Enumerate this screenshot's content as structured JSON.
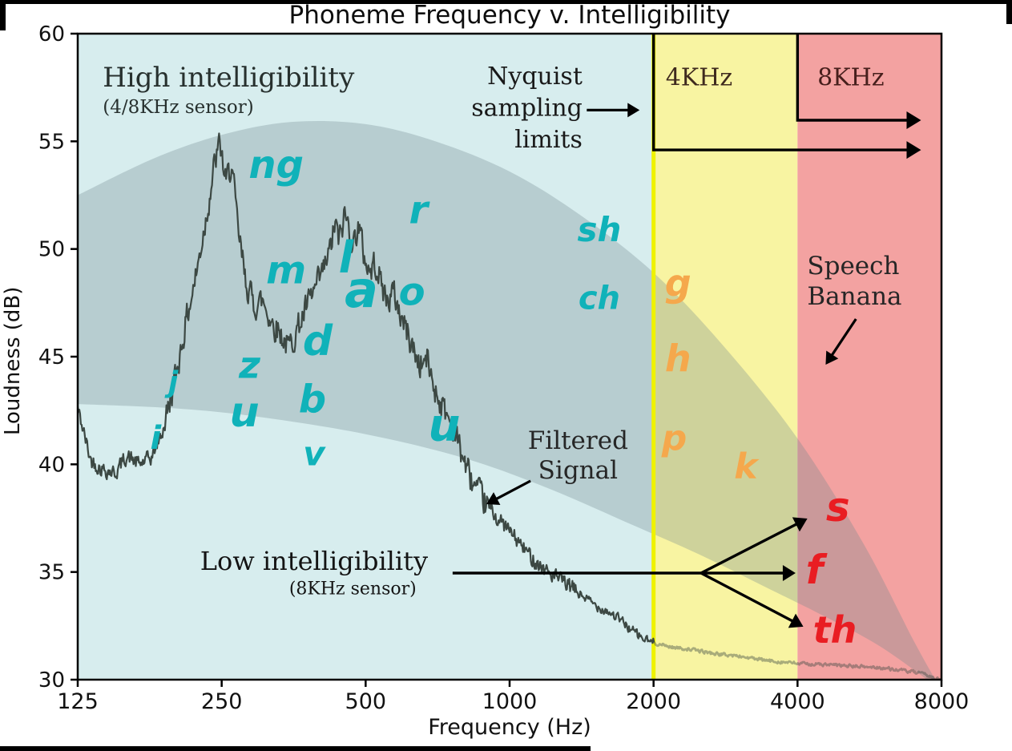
{
  "chart_data": {
    "type": "line",
    "title": "Phoneme Frequency v. Intelligibility",
    "xlabel": "Frequency (Hz)",
    "ylabel": "Loudness (dB)",
    "x_scale": "log2",
    "xlim": [
      125,
      8000
    ],
    "ylim": [
      30,
      60
    ],
    "x_ticks": [
      125,
      250,
      500,
      1000,
      2000,
      4000,
      8000
    ],
    "y_ticks": [
      30,
      35,
      40,
      45,
      50,
      55,
      60
    ],
    "grid": false,
    "colors": {
      "axis": "#000000",
      "annotation": "#1c1c1c",
      "banana": "rgba(108,134,140,0.30)",
      "signal": "#3c4843",
      "band_edge": "#eff200"
    },
    "bands": [
      {
        "label": "high-intelligibility-band",
        "x0": 125,
        "x1": 2000,
        "color": "#d7edee"
      },
      {
        "label": "4khz-band",
        "x0": 2000,
        "x1": 4000,
        "color": "#f8f4a2"
      },
      {
        "label": "8khz-band",
        "x0": 4000,
        "x1": 8000,
        "color": "#f3a2a1"
      }
    ],
    "band_edge": {
      "hz": 2000,
      "color": "#eff200",
      "width": 5
    },
    "speech_banana": {
      "fill": "rgba(108,134,140,0.30)",
      "top": [
        [
          125,
          52.5
        ],
        [
          180,
          54.2
        ],
        [
          250,
          55.3
        ],
        [
          350,
          55.9
        ],
        [
          500,
          55.8
        ],
        [
          700,
          55.0
        ],
        [
          1000,
          53.6
        ],
        [
          1400,
          51.6
        ],
        [
          2000,
          48.9
        ],
        [
          2800,
          45.5
        ],
        [
          4000,
          41.2
        ],
        [
          5500,
          36.3
        ],
        [
          7000,
          31.8
        ],
        [
          8000,
          29.5
        ]
      ],
      "bottom": [
        [
          8000,
          29.5
        ],
        [
          6000,
          31.5
        ],
        [
          4500,
          33.0
        ],
        [
          3500,
          34.2
        ],
        [
          2500,
          35.8
        ],
        [
          1800,
          37.2
        ],
        [
          1200,
          38.9
        ],
        [
          800,
          40.3
        ],
        [
          500,
          41.4
        ],
        [
          300,
          42.2
        ],
        [
          200,
          42.6
        ],
        [
          125,
          42.8
        ]
      ]
    },
    "series": [
      {
        "name": "Filtered Signal",
        "color": "#3c4843",
        "noise_seed": 42,
        "points": [
          [
            125,
            42.6
          ],
          [
            133,
            40.2
          ],
          [
            140,
            39.8
          ],
          [
            150,
            39.6
          ],
          [
            158,
            40.4
          ],
          [
            168,
            40.0
          ],
          [
            178,
            40.3
          ],
          [
            188,
            41.5
          ],
          [
            200,
            44.0
          ],
          [
            210,
            46.5
          ],
          [
            222,
            49.0
          ],
          [
            232,
            51.5
          ],
          [
            242,
            54.0
          ],
          [
            248,
            54.9
          ],
          [
            255,
            53.0
          ],
          [
            262,
            54.0
          ],
          [
            270,
            51.0
          ],
          [
            280,
            48.6
          ],
          [
            292,
            47.4
          ],
          [
            305,
            47.6
          ],
          [
            318,
            46.6
          ],
          [
            330,
            46.2
          ],
          [
            345,
            45.4
          ],
          [
            360,
            46.3
          ],
          [
            375,
            47.2
          ],
          [
            390,
            48.0
          ],
          [
            405,
            48.8
          ],
          [
            420,
            49.8
          ],
          [
            432,
            51.2
          ],
          [
            440,
            50.3
          ],
          [
            452,
            51.6
          ],
          [
            462,
            51.0
          ],
          [
            472,
            50.2
          ],
          [
            482,
            51.2
          ],
          [
            495,
            49.8
          ],
          [
            510,
            48.9
          ],
          [
            525,
            49.4
          ],
          [
            540,
            48.3
          ],
          [
            555,
            47.6
          ],
          [
            572,
            48.0
          ],
          [
            590,
            47.0
          ],
          [
            610,
            46.2
          ],
          [
            630,
            45.3
          ],
          [
            650,
            44.6
          ],
          [
            672,
            44.9
          ],
          [
            695,
            43.6
          ],
          [
            720,
            42.8
          ],
          [
            745,
            42.2
          ],
          [
            770,
            41.4
          ],
          [
            800,
            40.3
          ],
          [
            830,
            39.3
          ],
          [
            860,
            38.6
          ],
          [
            890,
            38.2
          ],
          [
            920,
            37.8
          ],
          [
            950,
            37.4
          ],
          [
            1000,
            36.9
          ],
          [
            1050,
            36.3
          ],
          [
            1100,
            35.8
          ],
          [
            1160,
            35.3
          ],
          [
            1220,
            34.9
          ],
          [
            1300,
            34.5
          ],
          [
            1400,
            34.0
          ],
          [
            1500,
            33.5
          ],
          [
            1600,
            33.2
          ],
          [
            1700,
            32.8
          ],
          [
            1800,
            32.3
          ],
          [
            1900,
            31.9
          ],
          [
            2000,
            31.7
          ],
          [
            2200,
            31.5
          ],
          [
            2400,
            31.4
          ],
          [
            2700,
            31.2
          ],
          [
            3000,
            31.1
          ],
          [
            3400,
            30.9
          ],
          [
            3800,
            30.8
          ],
          [
            4000,
            30.75
          ],
          [
            4500,
            30.7
          ],
          [
            5000,
            30.65
          ],
          [
            5500,
            30.6
          ],
          [
            6000,
            30.55
          ],
          [
            6500,
            30.45
          ],
          [
            7000,
            30.35
          ],
          [
            7500,
            30.2
          ],
          [
            8000,
            29.95
          ]
        ]
      }
    ],
    "phonemes": {
      "palette": {
        "teal": "#10b2b9",
        "orange": "#f5a84c",
        "red": "#e91d22"
      },
      "items": [
        {
          "t": "ng",
          "hz": 325,
          "db": 53.9,
          "size": 48,
          "c": "teal"
        },
        {
          "t": "r",
          "hz": 645,
          "db": 51.8,
          "size": 48,
          "c": "teal"
        },
        {
          "t": "sh",
          "hz": 1540,
          "db": 50.9,
          "size": 42,
          "c": "teal"
        },
        {
          "t": "ch",
          "hz": 1540,
          "db": 47.7,
          "size": 40,
          "c": "teal"
        },
        {
          "t": "m",
          "hz": 341,
          "db": 49.0,
          "size": 48,
          "c": "teal"
        },
        {
          "t": "l",
          "hz": 455,
          "db": 49.6,
          "size": 54,
          "c": "teal"
        },
        {
          "t": "a",
          "hz": 490,
          "db": 48.1,
          "size": 62,
          "c": "teal"
        },
        {
          "t": "o",
          "hz": 625,
          "db": 48.0,
          "size": 48,
          "c": "teal"
        },
        {
          "t": "z",
          "hz": 286,
          "db": 44.6,
          "size": 46,
          "c": "teal"
        },
        {
          "t": "d",
          "hz": 397,
          "db": 45.7,
          "size": 52,
          "c": "teal"
        },
        {
          "t": "j",
          "hz": 198,
          "db": 43.8,
          "size": 36,
          "c": "teal"
        },
        {
          "t": "u",
          "hz": 279,
          "db": 42.4,
          "size": 52,
          "c": "teal"
        },
        {
          "t": "b",
          "hz": 387,
          "db": 43.0,
          "size": 48,
          "c": "teal"
        },
        {
          "t": "i",
          "hz": 182,
          "db": 41.2,
          "size": 40,
          "c": "teal"
        },
        {
          "t": "v",
          "hz": 390,
          "db": 40.5,
          "size": 42,
          "c": "teal"
        },
        {
          "t": "u",
          "hz": 730,
          "db": 41.8,
          "size": 56,
          "c": "teal"
        },
        {
          "t": "g",
          "hz": 2250,
          "db": 48.4,
          "size": 46,
          "c": "orange"
        },
        {
          "t": "h",
          "hz": 2250,
          "db": 44.9,
          "size": 46,
          "c": "orange"
        },
        {
          "t": "p",
          "hz": 2210,
          "db": 41.2,
          "size": 44,
          "c": "orange"
        },
        {
          "t": "k",
          "hz": 3120,
          "db": 39.9,
          "size": 44,
          "c": "orange"
        },
        {
          "t": "s",
          "hz": 4860,
          "db": 38.0,
          "size": 50,
          "c": "red"
        },
        {
          "t": "f",
          "hz": 4340,
          "db": 35.1,
          "size": 50,
          "c": "red"
        },
        {
          "t": "th",
          "hz": 4790,
          "db": 32.3,
          "size": 46,
          "c": "red"
        }
      ]
    },
    "texts": [
      {
        "name": "high-intelligibility-label",
        "hz": 141,
        "db": 57.95,
        "anchor": "start",
        "lh": 37,
        "color": "#27302e",
        "lines": [
          {
            "t": "High intelligibility",
            "size": 34
          },
          {
            "t": "(4/8KHz sensor)",
            "size": 23
          }
        ]
      },
      {
        "name": "nyquist-label",
        "hz": 1420,
        "db": 58.0,
        "anchor": "end",
        "lh": 39.5,
        "color": "#191919",
        "lines": [
          {
            "t": "Nyquist",
            "size": 30
          },
          {
            "t": "sampling",
            "size": 30
          },
          {
            "t": "limits",
            "size": 30
          }
        ]
      },
      {
        "name": "4khz-label",
        "hz": 2490,
        "db": 57.95,
        "anchor": "middle",
        "lh": 38,
        "color": "#3f2a1e",
        "lines": [
          {
            "t": "4KHz",
            "size": 30
          }
        ]
      },
      {
        "name": "8khz-label",
        "hz": 5170,
        "db": 57.95,
        "anchor": "middle",
        "lh": 38,
        "color": "#471f1c",
        "lines": [
          {
            "t": "8KHz",
            "size": 30
          }
        ]
      },
      {
        "name": "speech-banana-label",
        "hz": 4190,
        "db": 49.2,
        "anchor": "start",
        "lh": 38,
        "color": "#262626",
        "lines": [
          {
            "t": "Speech",
            "size": 31
          },
          {
            "t": "Banana",
            "size": 31
          }
        ]
      },
      {
        "name": "filtered-signal-label",
        "hz": 1390,
        "db": 41.1,
        "anchor": "middle",
        "lh": 37,
        "color": "#262626",
        "lines": [
          {
            "t": "Filtered",
            "size": 31
          },
          {
            "t": "Signal",
            "size": 31
          }
        ]
      },
      {
        "name": "low-intelligibility-label",
        "hz": 390,
        "db": 35.5,
        "anchor": "middle",
        "lh": 36,
        "color": "#141414",
        "lines": [
          {
            "t": "Low intelligibility",
            "size": 32
          }
        ]
      },
      {
        "name": "low-intelligibility-sub",
        "hz": 470,
        "db": 34.2,
        "anchor": "middle",
        "lh": 30,
        "color": "#141414",
        "lines": [
          {
            "t": "(8KHz sensor)",
            "size": 22
          }
        ]
      }
    ],
    "arrows": [
      {
        "name": "nyquist-pointer-arrow",
        "from": [
          1450,
          56.45
        ],
        "to": [
          1870,
          56.45
        ],
        "width": 3.2,
        "head": [
          15,
          9
        ]
      },
      {
        "name": "speech-banana-arrow",
        "from": [
          5300,
          46.75
        ],
        "to": [
          4580,
          44.63
        ],
        "width": 3.2,
        "head": [
          15,
          9
        ]
      },
      {
        "name": "filtered-signal-arrow",
        "from": [
          1106,
          39.23
        ],
        "to": [
          894,
          38.15
        ],
        "width": 3.2,
        "head": [
          15,
          9
        ]
      },
      {
        "name": "low-intel-arrow-s",
        "from": [
          2514,
          34.95
        ],
        "to": [
          4194,
          37.48
        ],
        "width": 3.4,
        "head": [
          16,
          10
        ]
      },
      {
        "name": "low-intel-arrow-f",
        "from": [
          2514,
          34.95
        ],
        "to": [
          3963,
          34.95
        ],
        "width": 3.4,
        "head": [
          16,
          10
        ]
      },
      {
        "name": "low-intel-arrow-th",
        "from": [
          2514,
          34.95
        ],
        "to": [
          4113,
          32.46
        ],
        "width": 3.4,
        "head": [
          16,
          10
        ]
      }
    ],
    "polylines": [
      {
        "name": "low-intel-line",
        "pts": [
          [
            760,
            34.95
          ],
          [
            2514,
            34.95
          ]
        ],
        "width": 3.4,
        "head": null
      },
      {
        "name": "nyquist-2khz-limit",
        "pts": [
          [
            2000,
            60
          ],
          [
            2000,
            54.6
          ],
          [
            7250,
            54.6
          ]
        ],
        "width": 3.4,
        "head": [
          18,
          11
        ]
      },
      {
        "name": "nyquist-4khz-limit",
        "pts": [
          [
            4000,
            60
          ],
          [
            4000,
            55.98
          ],
          [
            7250,
            55.98
          ]
        ],
        "width": 3.4,
        "head": [
          18,
          11
        ]
      }
    ]
  }
}
